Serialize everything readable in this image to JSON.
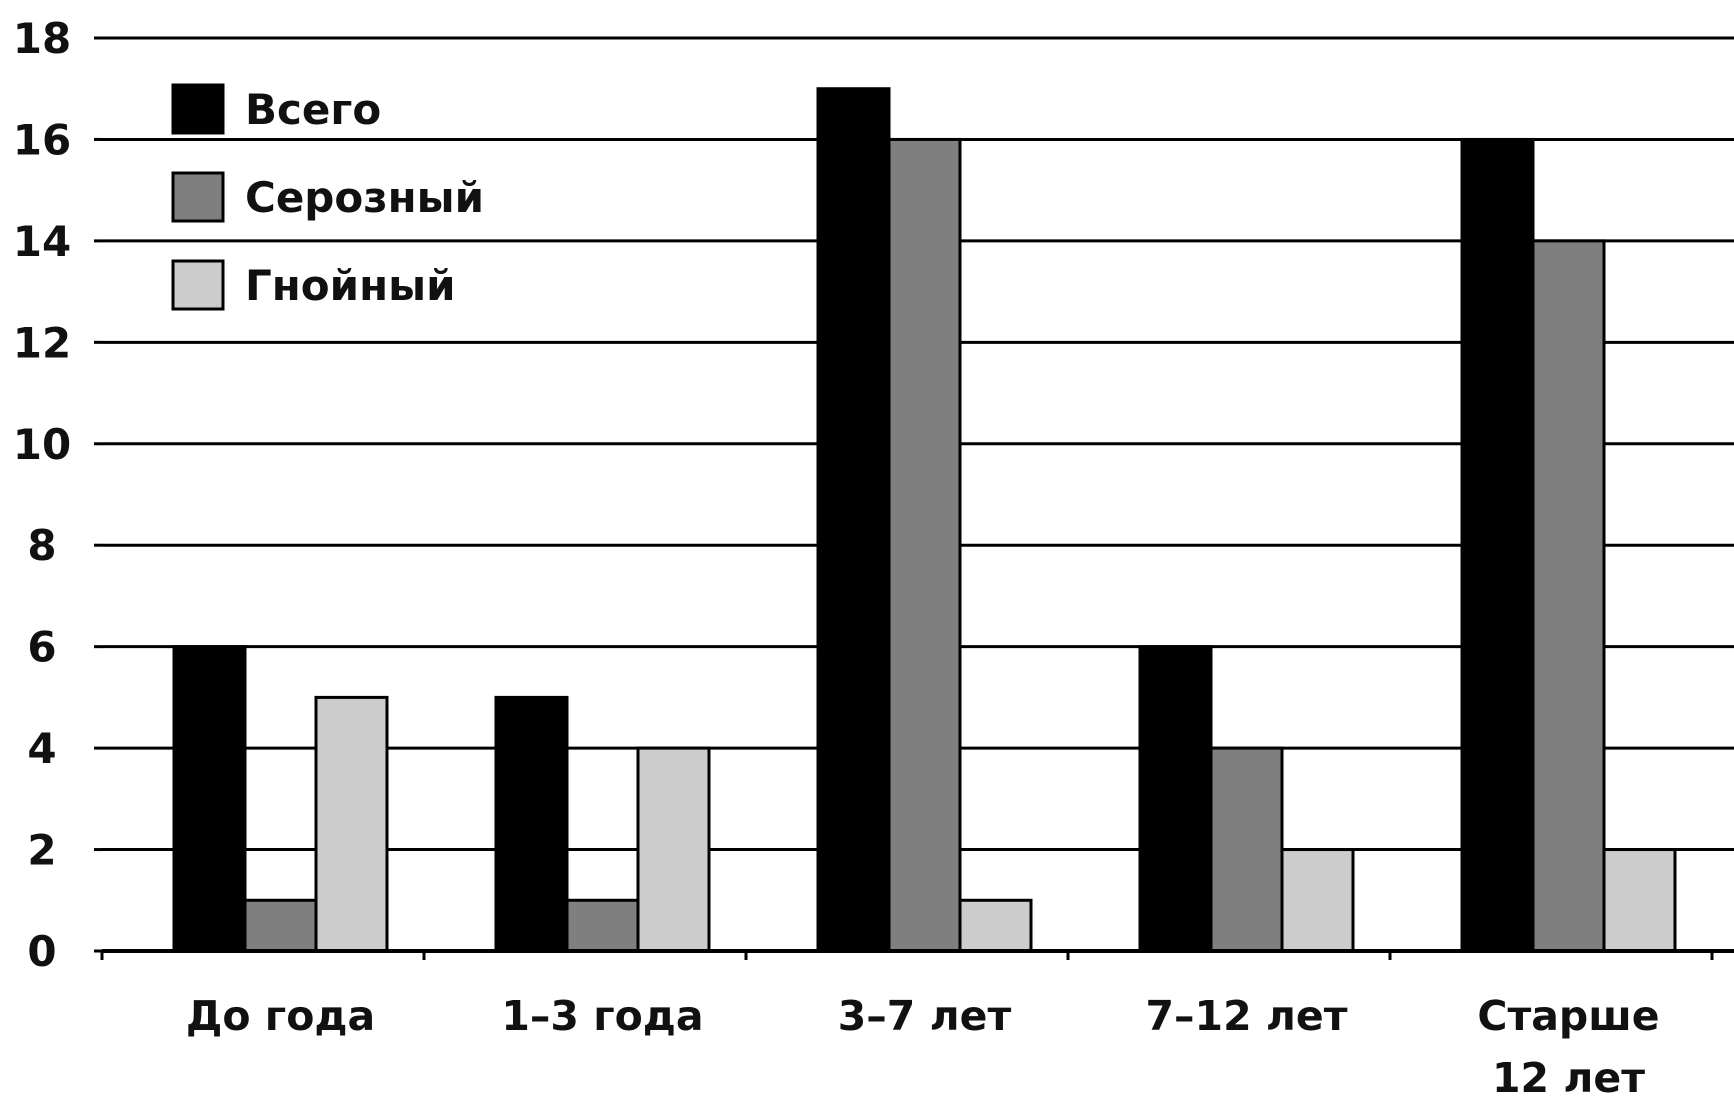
{
  "chart_data": {
    "type": "bar",
    "title": "",
    "xlabel": "",
    "ylabel": "",
    "categories": [
      [
        "До года"
      ],
      [
        "1–3 года"
      ],
      [
        "3–7 лет"
      ],
      [
        "7–12 лет"
      ],
      [
        "Старше",
        "12 лет"
      ]
    ],
    "series": [
      {
        "name": "Всего",
        "values": [
          6,
          5,
          17,
          6,
          16
        ],
        "color": "#000000"
      },
      {
        "name": "Серозный",
        "values": [
          1,
          1,
          16,
          4,
          14
        ],
        "color": "#7f7f7f"
      },
      {
        "name": "Гнойный",
        "values": [
          5,
          4,
          1,
          2,
          2
        ],
        "color": "#cccccc"
      }
    ],
    "ylim": [
      0,
      18
    ],
    "yticks": [
      0,
      2,
      4,
      6,
      8,
      10,
      12,
      14,
      16,
      18
    ],
    "grid": true,
    "legend": "top-left"
  }
}
